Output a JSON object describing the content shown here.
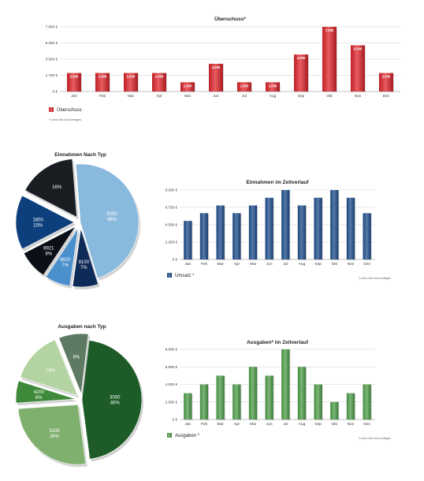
{
  "chart_data": [
    {
      "id": "ueberschuss",
      "type": "bar",
      "title": "Überschuss*",
      "categories": [
        "Jan",
        "Feb",
        "Mar",
        "Apr",
        "Mai",
        "Jun",
        "Jul",
        "Aug",
        "Sep",
        "Okt",
        "Nov",
        "Dez"
      ],
      "series": [
        {
          "name": "Überschuss",
          "values": [
            2000,
            2000,
            2000,
            2000,
            1000,
            3000,
            1000,
            1000,
            4000,
            7000,
            5000,
            2000
          ]
        }
      ],
      "data_labels": [
        "2.000",
        "2.000",
        "2.000",
        "2.000",
        "1.000",
        "3.000",
        "1.000",
        "1.000",
        "4.000",
        "7.000",
        "5.000",
        "2.000"
      ],
      "yticks": [
        "0 €",
        "1.750 €",
        "3.500 €",
        "5.250 €",
        "7.000 €"
      ],
      "ylim": [
        0,
        7000
      ],
      "grid": true,
      "legend_position": "bottom-left",
      "color": "#e0252b",
      "footnote": "*) ohne AfA und sonstiges"
    },
    {
      "id": "einnahmen-typ",
      "type": "pie",
      "title": "Einnahmen Nach Typ",
      "slices": [
        {
          "value": 46,
          "label_lines": [
            "9000",
            "46%"
          ],
          "color": "#8ab9de",
          "explode": false
        },
        {
          "value": 7,
          "label_lines": [
            "8100",
            "7%"
          ],
          "color": "#0e2a56",
          "explode": true
        },
        {
          "value": 7,
          "label_lines": [
            "8820",
            "7%"
          ],
          "color": "#4a90cc",
          "explode": true
        },
        {
          "value": 8,
          "label_lines": [
            "8921",
            "8%"
          ],
          "color": "#0b0f17",
          "explode": true
        },
        {
          "value": 15,
          "label_lines": [
            "1800",
            "15%"
          ],
          "color": "#0d3f7d",
          "explode": true
        },
        {
          "value": 16,
          "label_lines": [
            "16%"
          ],
          "color": "#1a1d22",
          "explode": true
        }
      ]
    },
    {
      "id": "einnahmen-zeit",
      "type": "bar",
      "title": "Einnahmen im Zeitverlauf",
      "categories": [
        "Jan",
        "Feb",
        "Mar",
        "Apr",
        "Mai",
        "Jun",
        "Jul",
        "Aug",
        "Sep",
        "Okt",
        "Nov",
        "Dez"
      ],
      "series": [
        {
          "name": "Umsatz *",
          "values": [
            5000,
            6000,
            7000,
            6000,
            7000,
            8000,
            9000,
            7000,
            8000,
            9000,
            8000,
            6000
          ]
        }
      ],
      "yticks": [
        "0 €",
        "2.250 €",
        "4.500 €",
        "6.750 €",
        "9.000 €"
      ],
      "ylim": [
        0,
        9000
      ],
      "grid": true,
      "legend_position": "bottom-left",
      "color": "#1d4f8e",
      "footnote": "*) ohne AfA und sonstiges"
    },
    {
      "id": "ausgaben-typ",
      "type": "pie",
      "title": "Ausgaben nach Typ",
      "slices": [
        {
          "value": 46,
          "label_lines": [
            "3000",
            "46%"
          ],
          "color": "#1d5c28",
          "explode": false
        },
        {
          "value": 26,
          "label_lines": [
            "3100",
            "26%"
          ],
          "color": "#7fb06e",
          "explode": true
        },
        {
          "value": 6,
          "label_lines": [
            "4200",
            "6%"
          ],
          "color": "#3f8a3a",
          "explode": true
        },
        {
          "value": 14,
          "label_lines": [
            "14%"
          ],
          "color": "#b4d3a2",
          "explode": true
        },
        {
          "value": 8,
          "label_lines": [
            "8%"
          ],
          "color": "#5e7a62",
          "explode": true
        }
      ]
    },
    {
      "id": "ausgaben-zeit",
      "type": "bar",
      "title": "Ausgaben* im Zeitverlauf",
      "categories": [
        "Jan",
        "Feb",
        "Mar",
        "Apr",
        "Mai",
        "Jun",
        "Jul",
        "Aug",
        "Sep",
        "Okt",
        "Nov",
        "Dez"
      ],
      "series": [
        {
          "name": "Ausgaben *",
          "values": [
            3000,
            4000,
            5000,
            4000,
            6000,
            5000,
            8000,
            6000,
            4000,
            2000,
            3000,
            4000
          ]
        }
      ],
      "yticks": [
        "0 €",
        "2.000 €",
        "4.000 €",
        "6.000 €",
        "8.000 €"
      ],
      "ylim": [
        0,
        8000
      ],
      "grid": true,
      "legend_position": "bottom-left",
      "color": "#4fa04a",
      "footnote": "*) ohne AfA und sonstiges"
    }
  ]
}
